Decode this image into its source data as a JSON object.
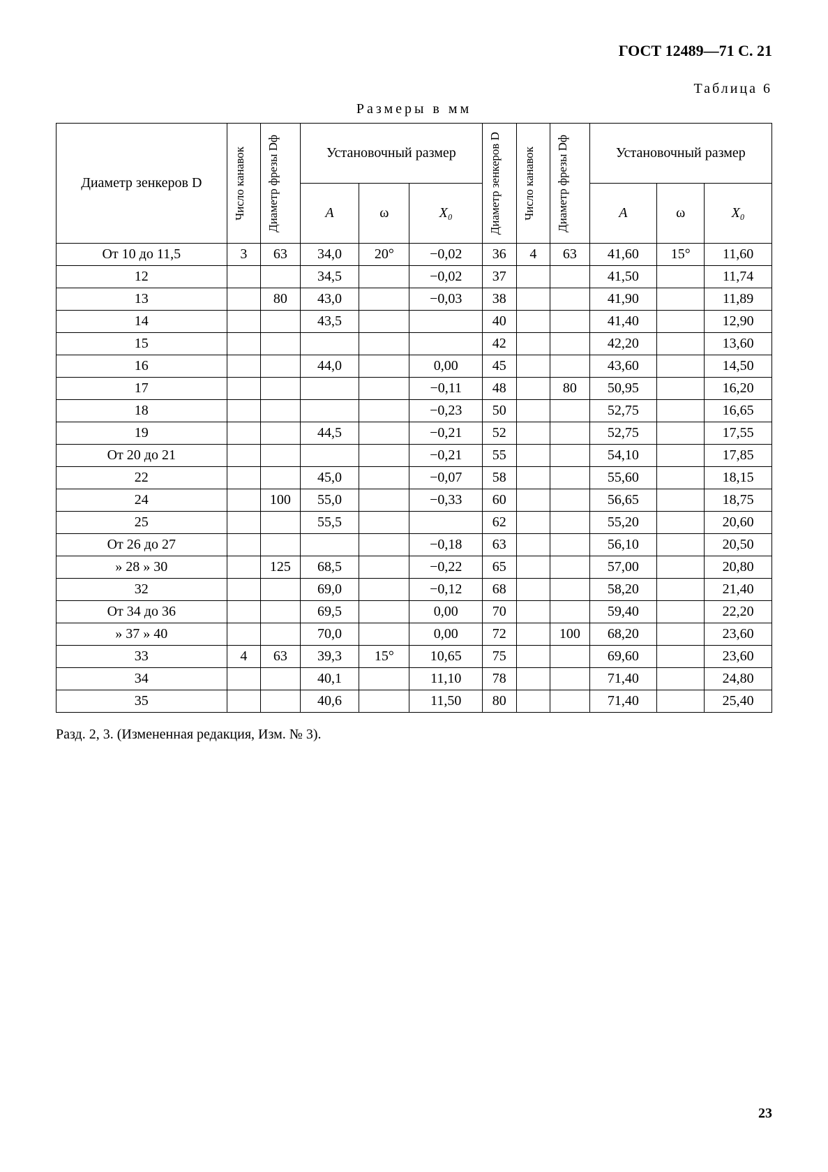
{
  "header": "ГОСТ 12489—71 С. 21",
  "table_label": "Таблица 6",
  "units": "Размеры в мм",
  "columns": {
    "diam_zenk": "Диаметр зенкеров D",
    "n_grooves": "Число канавок",
    "diam_frez": "Диаметр фрезы Dф",
    "setup": "Установочный размер",
    "A": "A",
    "omega": "ω",
    "X0": "X₀"
  },
  "left": {
    "rows": [
      {
        "d": "От 10 до 11,5",
        "n": "3",
        "df": "63",
        "A": "34,0",
        "w": "20°",
        "x": "−0,02"
      },
      {
        "d": "12",
        "n": "",
        "df": "",
        "A": "34,5",
        "w": "",
        "x": "−0,02"
      },
      {
        "d": "13",
        "n": "",
        "df": "80",
        "A": "43,0",
        "w": "",
        "x": "−0,03"
      },
      {
        "d": "14",
        "n": "",
        "df": "",
        "A": "43,5",
        "w": "",
        "x": ""
      },
      {
        "d": "15",
        "n": "",
        "df": "",
        "A": "",
        "w": "",
        "x": ""
      },
      {
        "d": "16",
        "n": "",
        "df": "",
        "A": "44,0",
        "w": "",
        "x": "0,00"
      },
      {
        "d": "17",
        "n": "",
        "df": "",
        "A": "",
        "w": "",
        "x": "−0,11"
      },
      {
        "d": "18",
        "n": "",
        "df": "",
        "A": "",
        "w": "",
        "x": "−0,23"
      },
      {
        "d": "19",
        "n": "",
        "df": "",
        "A": "44,5",
        "w": "",
        "x": "−0,21"
      },
      {
        "d": "От 20 до 21",
        "n": "",
        "df": "",
        "A": "",
        "w": "",
        "x": "−0,21"
      },
      {
        "d": "22",
        "n": "",
        "df": "",
        "A": "45,0",
        "w": "",
        "x": "−0,07"
      },
      {
        "d": "24",
        "n": "",
        "df": "100",
        "A": "55,0",
        "w": "",
        "x": "−0,33"
      },
      {
        "d": "25",
        "n": "",
        "df": "",
        "A": "55,5",
        "w": "",
        "x": ""
      },
      {
        "d": "От 26 до 27",
        "n": "",
        "df": "",
        "A": "",
        "w": "",
        "x": "−0,18"
      },
      {
        "d": "» 28 » 30",
        "n": "",
        "df": "125",
        "A": "68,5",
        "w": "",
        "x": "−0,22"
      },
      {
        "d": "32",
        "n": "",
        "df": "",
        "A": "69,0",
        "w": "",
        "x": "−0,12"
      },
      {
        "d": "От 34 до 36",
        "n": "",
        "df": "",
        "A": "69,5",
        "w": "",
        "x": "0,00"
      },
      {
        "d": "» 37 » 40",
        "n": "",
        "df": "",
        "A": "70,0",
        "w": "",
        "x": "0,00"
      },
      {
        "d": "33",
        "n": "4",
        "df": "63",
        "A": "39,3",
        "w": "15°",
        "x": "10,65"
      },
      {
        "d": "34",
        "n": "",
        "df": "",
        "A": "40,1",
        "w": "",
        "x": "11,10"
      },
      {
        "d": "35",
        "n": "",
        "df": "",
        "A": "40,6",
        "w": "",
        "x": "11,50"
      }
    ]
  },
  "right": {
    "rows": [
      {
        "d": "36",
        "n": "4",
        "df": "63",
        "A": "41,60",
        "w": "15°",
        "x": "11,60"
      },
      {
        "d": "37",
        "n": "",
        "df": "",
        "A": "41,50",
        "w": "",
        "x": "11,74"
      },
      {
        "d": "38",
        "n": "",
        "df": "",
        "A": "41,90",
        "w": "",
        "x": "11,89"
      },
      {
        "d": "40",
        "n": "",
        "df": "",
        "A": "41,40",
        "w": "",
        "x": "12,90"
      },
      {
        "d": "42",
        "n": "",
        "df": "",
        "A": "42,20",
        "w": "",
        "x": "13,60"
      },
      {
        "d": "45",
        "n": "",
        "df": "",
        "A": "43,60",
        "w": "",
        "x": "14,50"
      },
      {
        "d": "48",
        "n": "",
        "df": "80",
        "A": "50,95",
        "w": "",
        "x": "16,20"
      },
      {
        "d": "50",
        "n": "",
        "df": "",
        "A": "52,75",
        "w": "",
        "x": "16,65"
      },
      {
        "d": "52",
        "n": "",
        "df": "",
        "A": "52,75",
        "w": "",
        "x": "17,55"
      },
      {
        "d": "55",
        "n": "",
        "df": "",
        "A": "54,10",
        "w": "",
        "x": "17,85"
      },
      {
        "d": "58",
        "n": "",
        "df": "",
        "A": "55,60",
        "w": "",
        "x": "18,15"
      },
      {
        "d": "60",
        "n": "",
        "df": "",
        "A": "56,65",
        "w": "",
        "x": "18,75"
      },
      {
        "d": "62",
        "n": "",
        "df": "",
        "A": "55,20",
        "w": "",
        "x": "20,60"
      },
      {
        "d": "63",
        "n": "",
        "df": "",
        "A": "56,10",
        "w": "",
        "x": "20,50"
      },
      {
        "d": "65",
        "n": "",
        "df": "",
        "A": "57,00",
        "w": "",
        "x": "20,80"
      },
      {
        "d": "68",
        "n": "",
        "df": "",
        "A": "58,20",
        "w": "",
        "x": "21,40"
      },
      {
        "d": "70",
        "n": "",
        "df": "",
        "A": "59,40",
        "w": "",
        "x": "22,20"
      },
      {
        "d": "72",
        "n": "",
        "df": "100",
        "A": "68,20",
        "w": "",
        "x": "23,60"
      },
      {
        "d": "75",
        "n": "",
        "df": "",
        "A": "69,60",
        "w": "",
        "x": "23,60"
      },
      {
        "d": "78",
        "n": "",
        "df": "",
        "A": "71,40",
        "w": "",
        "x": "24,80"
      },
      {
        "d": "80",
        "n": "",
        "df": "",
        "A": "71,40",
        "w": "",
        "x": "25,40"
      }
    ]
  },
  "footnote": "Разд. 2, 3. (Измененная редакция, Изм. № 3).",
  "page": "23"
}
